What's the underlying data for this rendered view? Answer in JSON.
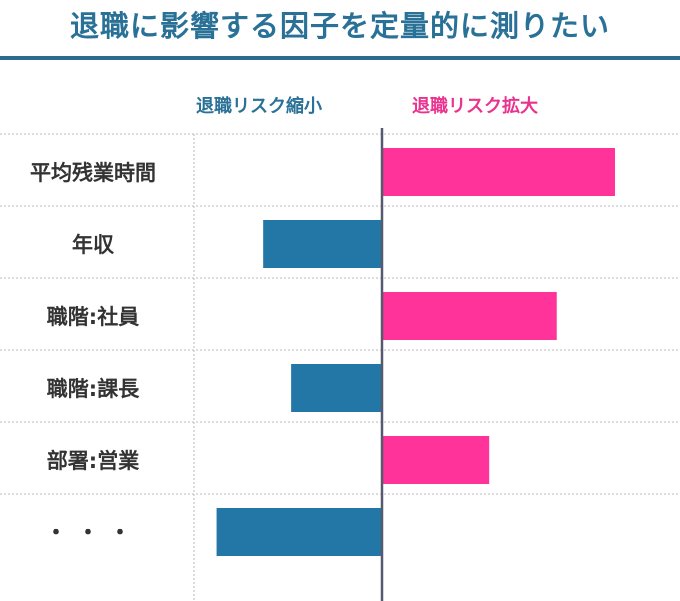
{
  "title": "退職に影響する因子を定量的に測りたい",
  "legend": {
    "decrease": "退職リスク縮小",
    "increase": "退職リスク拡大"
  },
  "colors": {
    "title": "#2a7197",
    "decrease": "#2277a6",
    "increase": "#ff3399",
    "axis": "#555a6e"
  },
  "chart_data": {
    "type": "bar",
    "orientation": "horizontal",
    "categories": [
      "平均残業時間",
      "年収",
      "職階:社員",
      "職階:課長",
      "部署:営業",
      "・・・"
    ],
    "values": [
      1.0,
      -0.51,
      0.75,
      -0.39,
      0.46,
      -0.71
    ],
    "xlim": [
      -1.0,
      1.0
    ],
    "grid": true
  }
}
